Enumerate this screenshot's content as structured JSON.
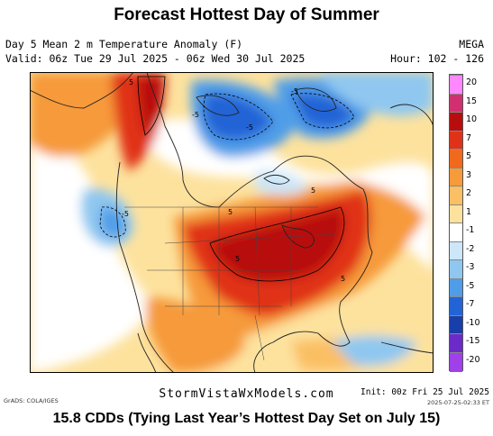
{
  "title": "Forecast Hottest Day of Summer",
  "header": {
    "line1": "Day 5 Mean 2 m Temperature Anomaly (F)",
    "line2": "Valid: 06z Tue 29 Jul 2025 - 06z Wed 30 Jul 2025",
    "model": "MEGA",
    "hour": "Hour: 102 - 126"
  },
  "colorbar": {
    "labels": [
      "20",
      "15",
      "10",
      "7",
      "5",
      "3",
      "2",
      "1",
      "-1",
      "-2",
      "-3",
      "-5",
      "-7",
      "-10",
      "-15",
      "-20"
    ],
    "colors": [
      "#ff88ff",
      "#d13070",
      "#b80d0d",
      "#e03218",
      "#f06a1e",
      "#f69a3a",
      "#fbbf64",
      "#fde29e",
      "#ffffff",
      "#cde6f8",
      "#8fc7f0",
      "#4f9de8",
      "#2264d6",
      "#183ea9",
      "#6c2bc9",
      "#a040e8"
    ]
  },
  "map": {
    "contour_labels": [
      "5",
      "-5",
      "-5",
      "-5",
      "-5",
      "5",
      "5",
      "5",
      "5"
    ]
  },
  "footer": {
    "grads": "GrADS: COLA/IGES",
    "brand": "StormVistaWxModels.com",
    "init": "Init: 00z Fri 25 Jul 2025",
    "stamp": "2025-07-25-02:33 ET"
  },
  "caption": "15.8 CDDs (Tying Last Year’s Hottest Day Set on July 15)"
}
